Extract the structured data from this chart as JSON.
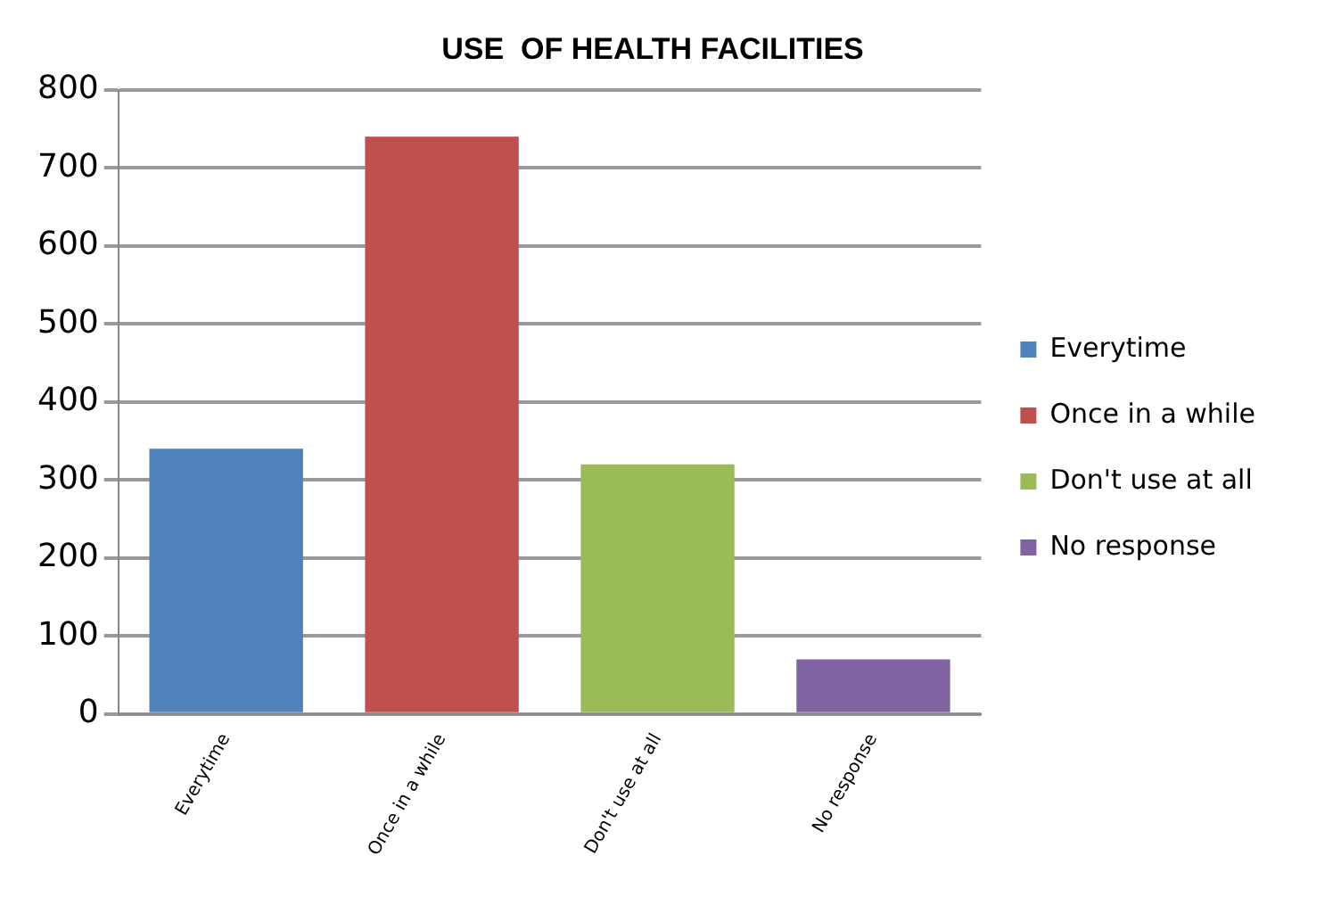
{
  "chart_data": {
    "type": "bar",
    "title": "USE  OF HEALTH FACILITIES",
    "categories": [
      "Everytime",
      "Once in a while",
      "Don't use at all",
      "No response"
    ],
    "series": [
      {
        "name": "Everytime",
        "color": "#4f81bd",
        "values": [
          340,
          null,
          null,
          null
        ]
      },
      {
        "name": "Once in a while",
        "color": "#c0504d",
        "values": [
          null,
          740,
          null,
          null
        ]
      },
      {
        "name": "Don't use at all",
        "color": "#9bbb59",
        "values": [
          null,
          null,
          320,
          null
        ]
      },
      {
        "name": "No response",
        "color": "#8064a2",
        "values": [
          null,
          null,
          null,
          70
        ]
      }
    ],
    "ylim": [
      0,
      800
    ],
    "yticks": [
      0,
      100,
      200,
      300,
      400,
      500,
      600,
      700,
      800
    ],
    "grid": "y",
    "legend": "right"
  }
}
